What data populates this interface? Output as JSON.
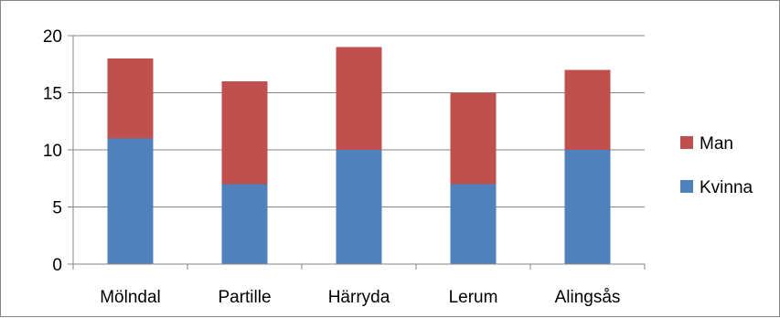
{
  "chart_data": {
    "type": "bar",
    "stacked": true,
    "categories": [
      "Mölndal",
      "Partille",
      "Härryda",
      "Lerum",
      "Alingsås"
    ],
    "series": [
      {
        "name": "Kvinna",
        "values": [
          11,
          7,
          10,
          7,
          10
        ],
        "color": "#4F81BD"
      },
      {
        "name": "Man",
        "values": [
          7,
          9,
          9,
          8,
          7
        ],
        "color": "#C0504D"
      }
    ],
    "ylim": [
      0,
      20
    ],
    "yticks": [
      0,
      5,
      10,
      15,
      20
    ],
    "grid": true,
    "legend": {
      "placement": "right",
      "order": [
        "Man",
        "Kvinna"
      ]
    },
    "title": "",
    "xlabel": "",
    "ylabel": ""
  }
}
